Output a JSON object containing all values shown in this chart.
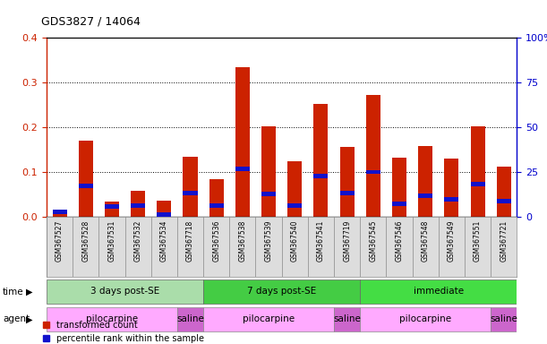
{
  "title": "GDS3827 / 14064",
  "samples": [
    "GSM367527",
    "GSM367528",
    "GSM367531",
    "GSM367532",
    "GSM367534",
    "GSM367718",
    "GSM367536",
    "GSM367538",
    "GSM367539",
    "GSM367540",
    "GSM367541",
    "GSM367719",
    "GSM367545",
    "GSM367546",
    "GSM367548",
    "GSM367549",
    "GSM367551",
    "GSM367721"
  ],
  "red_values": [
    0.01,
    0.17,
    0.033,
    0.057,
    0.036,
    0.135,
    0.083,
    0.335,
    0.202,
    0.124,
    0.253,
    0.157,
    0.272,
    0.133,
    0.158,
    0.13,
    0.202,
    0.112
  ],
  "blue_values_pct": [
    2.5,
    17.0,
    5.5,
    6.3,
    1.3,
    13.0,
    6.3,
    27.0,
    12.5,
    6.3,
    22.5,
    13.0,
    25.0,
    7.0,
    11.8,
    9.5,
    18.3,
    8.8
  ],
  "ylim": [
    0,
    0.4
  ],
  "yticks": [
    0,
    0.1,
    0.2,
    0.3,
    0.4
  ],
  "y2ticks_vals": [
    0,
    25,
    50,
    75,
    100
  ],
  "y2ticks_labels": [
    "0",
    "25",
    "50",
    "75",
    "100%"
  ],
  "time_groups": [
    {
      "label": "3 days post-SE",
      "start": 0,
      "end": 5,
      "color": "#AADDAA"
    },
    {
      "label": "7 days post-SE",
      "start": 6,
      "end": 11,
      "color": "#44CC44"
    },
    {
      "label": "immediate",
      "start": 12,
      "end": 17,
      "color": "#44DD44"
    }
  ],
  "agent_groups": [
    {
      "label": "pilocarpine",
      "start": 0,
      "end": 4,
      "color": "#FFAAFF"
    },
    {
      "label": "saline",
      "start": 5,
      "end": 5,
      "color": "#CC66CC"
    },
    {
      "label": "pilocarpine",
      "start": 6,
      "end": 10,
      "color": "#FFAAFF"
    },
    {
      "label": "saline",
      "start": 11,
      "end": 11,
      "color": "#CC66CC"
    },
    {
      "label": "pilocarpine",
      "start": 12,
      "end": 16,
      "color": "#FFAAFF"
    },
    {
      "label": "saline",
      "start": 17,
      "end": 17,
      "color": "#CC66CC"
    }
  ],
  "bar_color_red": "#CC2200",
  "bar_color_blue": "#1111CC",
  "bar_width": 0.55,
  "tick_color_left": "#CC2200",
  "tick_color_right": "#0000CC",
  "legend_red": "transformed count",
  "legend_blue": "percentile rank within the sample",
  "time_label": "time",
  "agent_label": "agent",
  "sample_label_bg": "#DDDDDD"
}
